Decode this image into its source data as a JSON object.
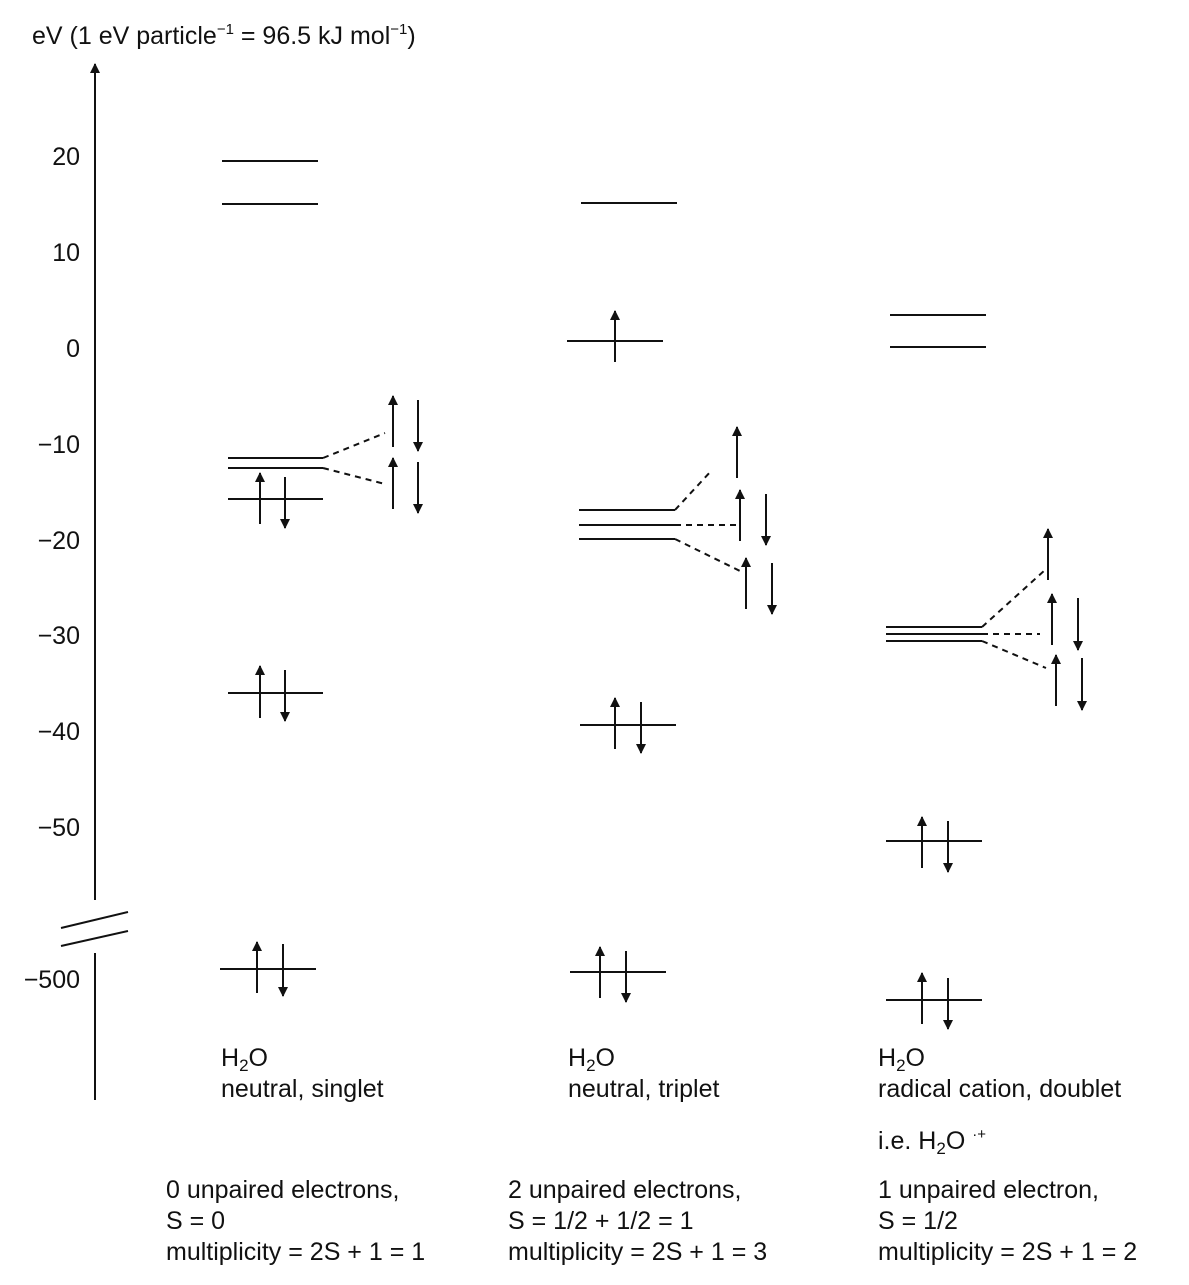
{
  "axis": {
    "unit": "eV (1 eV particle",
    "unit_sup1": "−1",
    "unit_mid": " = 96.5 kJ mol",
    "unit_sup2": "−1",
    "unit_end": ")",
    "ticks": [
      "20",
      "10",
      "0",
      "−10",
      "−20",
      "−30",
      "−40",
      "−50",
      "−500"
    ]
  },
  "columns": [
    {
      "formula_main": "H",
      "formula_sub": "2",
      "formula_end": "O",
      "state": "neutral, singlet",
      "note": "",
      "unpaired": "0 unpaired electrons,",
      "spin": "S = 0",
      "multiplicity": "multiplicity = 2S + 1 = 1"
    },
    {
      "formula_main": "H",
      "formula_sub": "2",
      "formula_end": "O",
      "state": "neutral, triplet",
      "note": "",
      "unpaired": "2 unpaired electrons,",
      "spin": "S = 1/2 + 1/2 = 1",
      "multiplicity": "multiplicity = 2S + 1 = 3"
    },
    {
      "formula_main": "H",
      "formula_sub": "2",
      "formula_end": "O",
      "state": "radical cation, doublet",
      "note_pre": "i.e. H",
      "note_sub": "2",
      "note_mid": "O ",
      "note_sup": "·+",
      "unpaired": "1 unpaired electron,",
      "spin": "S = 1/2",
      "multiplicity": "multiplicity = 2S + 1 = 2"
    }
  ],
  "colors": {
    "ink": "#111111",
    "background": "#ffffff"
  }
}
